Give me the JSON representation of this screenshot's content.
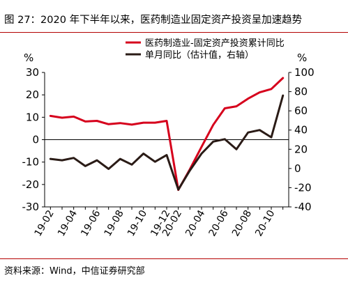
{
  "title": "图 27：2020 年下半年以来，医药制造业固定资产投资呈加速趋势",
  "source": "资料来源：Wind，中信证券研究部",
  "chart_data": {
    "type": "line",
    "categories": [
      "19-02",
      "19-03",
      "19-04",
      "19-05",
      "19-06",
      "19-07",
      "19-08",
      "19-09",
      "19-10",
      "19-11",
      "19-12",
      "20-02",
      "20-03",
      "20-04",
      "20-05",
      "20-06",
      "20-07",
      "20-08",
      "20-09",
      "20-10",
      "20-11"
    ],
    "x_tick_labels": [
      "19-02",
      "19-04",
      "19-06",
      "19-08",
      "19-10",
      "19-12",
      "20-02",
      "20-04",
      "20-06",
      "20-08",
      "20-10"
    ],
    "y_left": {
      "unit": "%",
      "min": -30,
      "max": 30,
      "ticks": [
        -30,
        -20,
        -10,
        0,
        10,
        20,
        30
      ]
    },
    "y_right": {
      "unit": "%",
      "min": -40,
      "max": 100,
      "ticks": [
        -40,
        -20,
        0,
        20,
        40,
        60,
        80,
        100
      ]
    },
    "legend_position": "top-right",
    "series": [
      {
        "name": "医药制造业-固定资产投资累计同比",
        "axis": "left",
        "color": "#d6001c",
        "values": [
          10.6,
          9.8,
          10.3,
          8.1,
          8.4,
          6.9,
          7.4,
          6.7,
          7.6,
          7.6,
          8.4,
          -22.4,
          -13.2,
          -3.2,
          6.6,
          14.0,
          14.9,
          18.3,
          21.1,
          22.6,
          27.5
        ]
      },
      {
        "name": "单月同比（估计值，右轴）",
        "axis": "right",
        "color": "#2a1b16",
        "values": [
          10.0,
          8.5,
          11.0,
          2.5,
          8.5,
          -0.5,
          10.0,
          4.0,
          15.5,
          7.0,
          14.0,
          -22.0,
          -2.0,
          15.5,
          28.0,
          30.5,
          20.0,
          37.5,
          40.0,
          32.5,
          76.0
        ]
      }
    ]
  }
}
